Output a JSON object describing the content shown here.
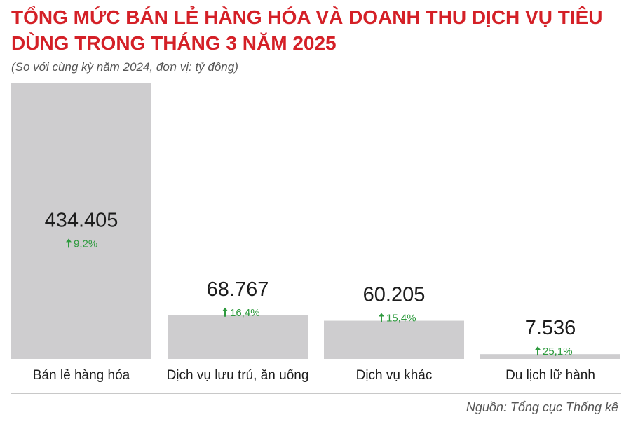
{
  "title": "TỔNG MỨC BÁN LẺ HÀNG HÓA VÀ DOANH THU DỊCH VỤ TIÊU DÙNG TRONG THÁNG 3 NĂM 2025",
  "subtitle": "(So với cùng kỳ năm 2024, đơn vị: tỷ đồng)",
  "source": "Nguồn: Tổng cục Thống kê",
  "colors": {
    "bar": "#cecdcf",
    "growth": "#2e9a3e",
    "title": "#d42027"
  },
  "chart_data": {
    "type": "bar",
    "categories": [
      "Bán lẻ hàng hóa",
      "Dịch vụ lưu trú, ăn uống",
      "Dịch vụ khác",
      "Du lịch lữ hành"
    ],
    "values": [
      434405,
      68767,
      60205,
      7536
    ],
    "value_labels": [
      "434.405",
      "68.767",
      "60.205",
      "7.536"
    ],
    "growth_labels": [
      "9,2%",
      "16,4%",
      "15,4%",
      "25,1%"
    ],
    "growth_icon": "arrow-up-icon",
    "title": "TỔNG MỨC BÁN LẺ HÀNG HÓA VÀ DOANH THU DỊCH VỤ TIÊU DÙNG TRONG THÁNG 3 NĂM 2025",
    "xlabel": "",
    "ylabel": "",
    "ylim": [
      0,
      434405
    ],
    "grid": false,
    "legend": "none"
  }
}
